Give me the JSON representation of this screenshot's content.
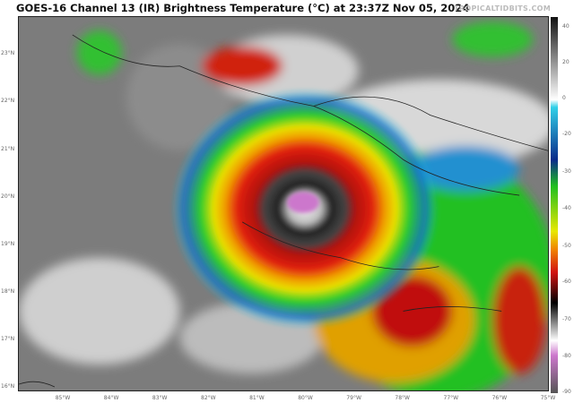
{
  "title": "GOES-16 Channel 13 (IR) Brightness Temperature (°C) at 23:37Z Nov 05, 2024",
  "brand": "TROPICALTIDBITS.COM",
  "lat_labels": [
    "23°N",
    "22°N",
    "21°N",
    "20°N",
    "19°N",
    "18°N",
    "17°N",
    "16°N"
  ],
  "lon_labels": [
    "85°W",
    "84°W",
    "83°W",
    "82°W",
    "81°W",
    "80°W",
    "79°W",
    "78°W",
    "77°W",
    "76°W",
    "75°W"
  ],
  "colorbar": {
    "labels": [
      "40",
      "20",
      "0",
      "-20",
      "-30",
      "-40",
      "-50",
      "-60",
      "-70",
      "-80",
      "-90"
    ],
    "colors": [
      "#111111",
      "#ffffff",
      "#2ec4e0",
      "#0a2a8a",
      "#1fbf1f",
      "#e8e800",
      "#e01010",
      "#000000",
      "#ffffff",
      "#cc66cc"
    ]
  },
  "storm": {
    "colors": {
      "eye": "#f0f0f0",
      "ring": "#1a1a1a",
      "red": "#c81010",
      "yellow": "#e8e000",
      "green": "#22cc22",
      "blue": "#1060c0"
    }
  }
}
